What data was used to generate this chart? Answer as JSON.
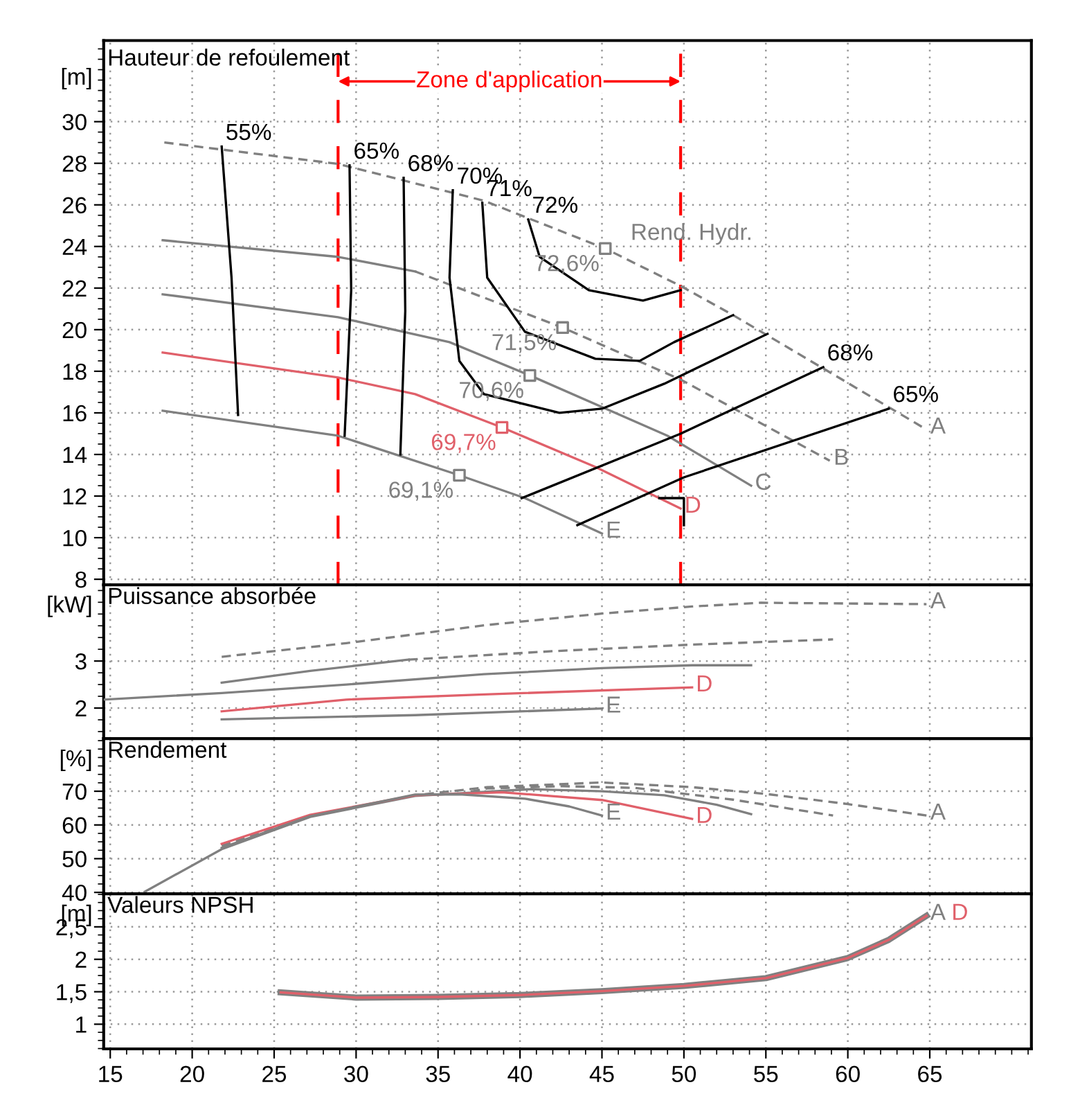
{
  "chart_data": [
    {
      "type": "line",
      "title": "Hauteur de refoulement",
      "ylabel": "[m]",
      "xlim": [
        14.6,
        71.2
      ],
      "ylim": [
        7.73,
        33.9
      ],
      "xticks": [
        15,
        20,
        25,
        30,
        35,
        40,
        45,
        50,
        55,
        60,
        65
      ],
      "yticks": [
        8,
        10,
        12,
        14,
        16,
        18,
        20,
        22,
        24,
        26,
        28,
        30
      ],
      "tick_labels": "y",
      "grid": true,
      "ref_lines": [
        {
          "axis": "x",
          "value": 28.9,
          "label": "Zone d'application",
          "color": "#ff0000",
          "line_style": "dashed"
        },
        {
          "axis": "x",
          "value": 49.8,
          "color": "#ff0000",
          "line_style": "dashed"
        }
      ],
      "annotations": [
        "Rend. Hydr.",
        {
          "text": "72,6%",
          "x": 45.2,
          "y": 23.9
        },
        {
          "text": "71,5%",
          "x": 42.6,
          "y": 20.1
        },
        {
          "text": "70,6%",
          "x": 40.6,
          "y": 17.8
        },
        {
          "text": "69,1%",
          "x": 36.3,
          "y": 13.0
        },
        {
          "text": "69,7%",
          "x": 38.9,
          "y": 15.3
        }
      ],
      "series": [
        {
          "color": "#808080",
          "line_style": "solid",
          "x": [
            18.2,
            28.9,
            33.6
          ],
          "values": [
            24.3,
            23.5,
            22.8
          ]
        },
        {
          "name": "A",
          "color": "#808080",
          "line_style": "dashed",
          "x": [
            18.3,
            28.9,
            37.8,
            45.2,
            49.8,
            53.0,
            64.8
          ],
          "values": [
            29.0,
            27.97,
            26.2,
            23.9,
            22.1,
            20.7,
            15.2
          ]
        },
        {
          "name": "B",
          "color": "#808080",
          "line_style": "dashed",
          "x": [
            33.6,
            42.6,
            49.8,
            58.9
          ],
          "values": [
            22.8,
            20.1,
            17.6,
            13.7
          ]
        },
        {
          "name": "C",
          "color": "#808080",
          "line_style": "solid",
          "x": [
            18.2,
            28.9,
            35.7,
            40.6,
            49.0,
            54.1
          ],
          "values": [
            21.7,
            20.6,
            19.4,
            17.8,
            14.9,
            12.5
          ]
        },
        {
          "name": "D",
          "color": "#e0606a",
          "line_style": "solid",
          "x": [
            18.2,
            28.9,
            33.6,
            38.9,
            44.6,
            49.8
          ],
          "values": [
            18.9,
            17.7,
            16.9,
            15.3,
            13.4,
            11.4
          ]
        },
        {
          "name": "E",
          "color": "#808080",
          "line_style": "solid",
          "x": [
            18.2,
            28.9,
            36.3,
            40.3,
            45.0
          ],
          "values": [
            16.1,
            14.9,
            13.0,
            11.9,
            10.2
          ]
        },
        {
          "name": "55%",
          "color": "#000000",
          "line_style": "solid",
          "x": [
            22.8,
            22.4,
            21.8
          ],
          "values": [
            15.9,
            22.5,
            28.8
          ]
        },
        {
          "name": "65%",
          "color": "#000000",
          "line_style": "solid",
          "x": [
            29.3,
            29.7,
            29.6
          ],
          "values": [
            14.9,
            21.9,
            27.9
          ]
        },
        {
          "name": "68%",
          "color": "#000000",
          "line_style": "solid",
          "x": [
            32.7,
            33.0,
            32.9
          ],
          "values": [
            14.0,
            20.9,
            27.3
          ]
        },
        {
          "name": "70%",
          "color": "#000000",
          "line_style": "solid",
          "x": [
            55.1,
            48.8,
            45.0,
            42.4,
            37.8,
            36.3,
            35.7,
            35.9
          ],
          "values": [
            19.8,
            17.4,
            16.2,
            16.0,
            16.9,
            18.5,
            22.5,
            26.7
          ]
        },
        {
          "name": "71%",
          "color": "#000000",
          "line_style": "solid",
          "x": [
            53.0,
            49.4,
            47.3,
            44.6,
            40.3,
            38.0,
            37.7
          ],
          "values": [
            20.7,
            19.4,
            18.5,
            18.6,
            19.9,
            22.5,
            26.1
          ]
        },
        {
          "name": "72%",
          "color": "#000000",
          "line_style": "solid",
          "x": [
            49.8,
            47.5,
            44.2,
            41.2,
            40.5
          ],
          "values": [
            21.9,
            21.4,
            21.9,
            23.5,
            25.3
          ]
        },
        {
          "name": "68%",
          "color": "#000000",
          "line_style": "solid",
          "x": [
            40.1,
            49.8,
            58.5
          ],
          "values": [
            11.9,
            15.0,
            18.2
          ]
        },
        {
          "name": "65%",
          "color": "#000000",
          "line_style": "solid",
          "x": [
            43.5,
            50.0,
            62.5
          ],
          "values": [
            10.6,
            12.9,
            16.2
          ]
        },
        {
          "color": "#000000",
          "line_style": "solid",
          "x": [
            48.5,
            50.0,
            50.0
          ],
          "values": [
            11.9,
            11.9,
            10.6
          ]
        },
        {
          "type": "scatter",
          "marker": "square",
          "color": "#808080",
          "x": [
            45.2,
            42.6,
            40.6,
            36.3
          ],
          "values": [
            23.9,
            20.1,
            17.8,
            13.0
          ]
        },
        {
          "type": "scatter",
          "marker": "square",
          "color": "#e0606a",
          "x": [
            38.9
          ],
          "values": [
            15.3
          ]
        }
      ]
    },
    {
      "type": "line",
      "title": "Puissance absorbée",
      "ylabel": "[kW]",
      "xlim": [
        14.6,
        71.2
      ],
      "ylim": [
        1.35,
        4.62
      ],
      "xticks": [
        15,
        20,
        25,
        30,
        35,
        40,
        45,
        50,
        55,
        60,
        65
      ],
      "yticks": [
        2,
        3
      ],
      "tick_labels": "y",
      "grid": true,
      "series": [
        {
          "name": "A",
          "color": "#808080",
          "line_style": "dashed",
          "x": [
            21.8,
            29.4,
            37.8,
            45.0,
            50.5,
            54.7,
            64.8
          ],
          "values": [
            3.09,
            3.38,
            3.76,
            4.01,
            4.16,
            4.24,
            4.21
          ]
        },
        {
          "color": "#808080",
          "line_style": "solid",
          "x": [
            21.8,
            27.2,
            33.2
          ],
          "values": [
            2.54,
            2.79,
            3.03
          ]
        },
        {
          "color": "#808080",
          "line_style": "dashed",
          "x": [
            33.2,
            42.0,
            50.5,
            59.1
          ],
          "values": [
            3.03,
            3.21,
            3.35,
            3.46
          ]
        },
        {
          "color": "#808080",
          "line_style": "solid",
          "x": [
            14.6,
            21.8,
            29.4,
            37.8,
            45.0,
            50.5,
            54.1
          ],
          "values": [
            2.18,
            2.32,
            2.5,
            2.72,
            2.85,
            2.91,
            2.91
          ]
        },
        {
          "name": "D",
          "color": "#e0606a",
          "line_style": "solid",
          "x": [
            21.8,
            29.4,
            37.8,
            50.5
          ],
          "values": [
            1.93,
            2.18,
            2.29,
            2.44
          ]
        },
        {
          "name": "E",
          "color": "#808080",
          "line_style": "solid",
          "x": [
            21.8,
            33.6,
            45.0
          ],
          "values": [
            1.76,
            1.85,
            1.99
          ]
        }
      ]
    },
    {
      "type": "line",
      "title": "Rendement",
      "ylabel": "[%]",
      "xlim": [
        14.6,
        71.2
      ],
      "ylim": [
        39.6,
        85.6
      ],
      "xticks": [
        15,
        20,
        25,
        30,
        35,
        40,
        45,
        50,
        55,
        60,
        65
      ],
      "yticks": [
        40,
        50,
        60,
        70
      ],
      "tick_labels": "y",
      "grid": true,
      "series": [
        {
          "name": "A",
          "color": "#808080",
          "line_style": "dashed",
          "x": [
            21.8,
            27.2,
            33.6,
            38.0,
            45.0,
            50.5,
            55.0,
            60.0,
            64.8
          ],
          "values": [
            53.8,
            62.6,
            68.8,
            71.2,
            72.6,
            71.2,
            69.2,
            66.2,
            62.8
          ]
        },
        {
          "color": "#808080",
          "line_style": "dashed",
          "x": [
            37.0,
            38.0,
            42.6,
            47.0,
            53.0,
            59.1
          ],
          "values": [
            69.9,
            70.8,
            71.5,
            71.0,
            67.5,
            62.8
          ]
        },
        {
          "color": "#808080",
          "line_style": "solid",
          "x": [
            17.1,
            21.8,
            27.2,
            33.6,
            40.6,
            45.0,
            48.8,
            52.0,
            54.1
          ],
          "values": [
            40.2,
            52.8,
            62.4,
            68.6,
            70.6,
            70.0,
            68.8,
            66.0,
            63.2
          ]
        },
        {
          "name": "D",
          "color": "#e0606a",
          "line_style": "solid",
          "x": [
            21.8,
            27.2,
            33.6,
            38.9,
            45.0,
            50.5
          ],
          "values": [
            54.4,
            63.0,
            68.8,
            69.7,
            67.4,
            61.8
          ]
        },
        {
          "name": "E",
          "color": "#808080",
          "line_style": "solid",
          "x": [
            21.8,
            27.2,
            33.6,
            36.3,
            40.3,
            43.0,
            45.0
          ],
          "values": [
            53.2,
            62.6,
            69.0,
            69.1,
            67.8,
            65.5,
            62.8
          ]
        }
      ]
    },
    {
      "type": "line",
      "title": "Valeurs NPSH",
      "ylabel": "[m]",
      "xlim": [
        14.6,
        71.2
      ],
      "ylim": [
        0.62,
        3.01
      ],
      "xticks": [
        15,
        20,
        25,
        30,
        35,
        40,
        45,
        50,
        55,
        60,
        65
      ],
      "yticks": [
        1,
        {
          "value": 1.5,
          "label": "1,5"
        },
        2,
        {
          "value": 2.5,
          "label": "2,5"
        }
      ],
      "grid": true,
      "series": [
        {
          "name": "A",
          "color": "#808080",
          "line_style": "solid",
          "x": [
            25.4,
            30.0,
            35.0,
            40.0,
            45.0,
            50.0,
            55.0,
            60.0,
            62.5,
            64.8
          ],
          "values": [
            1.49,
            1.41,
            1.42,
            1.45,
            1.51,
            1.59,
            1.71,
            2.02,
            2.3,
            2.67
          ]
        },
        {
          "name": "D",
          "color": "#e0606a",
          "line_style": "solid",
          "x": [
            25.4,
            30.0,
            35.0,
            40.0,
            45.0,
            50.0,
            55.0,
            60.0,
            62.5,
            64.8
          ],
          "values": [
            1.49,
            1.41,
            1.42,
            1.45,
            1.51,
            1.59,
            1.71,
            2.02,
            2.3,
            2.67
          ]
        }
      ]
    }
  ]
}
